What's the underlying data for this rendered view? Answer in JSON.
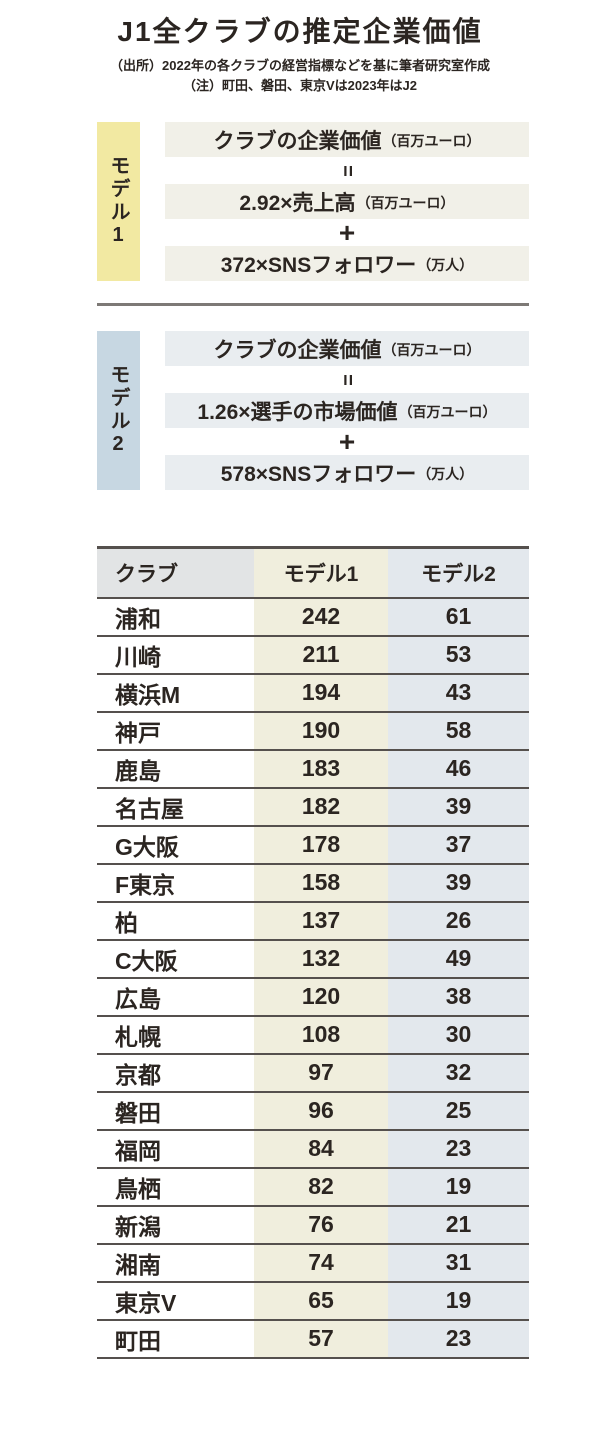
{
  "header": {
    "title": "J1全クラブの推定企業価値",
    "source_note": "（出所）2022年の各クラブの経営指標などを基に筆者研究室作成",
    "note": "（注）町田、磐田、東京Vは2023年はJ2"
  },
  "models": [
    {
      "label": "モデル1",
      "lines": [
        {
          "type": "box",
          "text": "クラブの企業価値",
          "unit": "（百万ユーロ）"
        },
        {
          "type": "op",
          "symbol": "="
        },
        {
          "type": "box",
          "text": "2.92×売上高",
          "unit": "（百万ユーロ）"
        },
        {
          "type": "op",
          "symbol": "+"
        },
        {
          "type": "box",
          "text": "372×SNSフォロワー",
          "unit": "（万人）"
        }
      ]
    },
    {
      "label": "モデル2",
      "lines": [
        {
          "type": "box",
          "text": "クラブの企業価値",
          "unit": "（百万ユーロ）"
        },
        {
          "type": "op",
          "symbol": "="
        },
        {
          "type": "box",
          "text": "1.26×選手の市場価値",
          "unit": "（百万ユーロ）"
        },
        {
          "type": "op",
          "symbol": "+"
        },
        {
          "type": "box",
          "text": "578×SNSフォロワー",
          "unit": "（万人）"
        }
      ]
    }
  ],
  "chart_data": {
    "type": "table",
    "title": "J1全クラブの推定企業価値",
    "columns": [
      "クラブ",
      "モデル1",
      "モデル2"
    ],
    "rows": [
      [
        "浦和",
        242,
        61
      ],
      [
        "川崎",
        211,
        53
      ],
      [
        "横浜M",
        194,
        43
      ],
      [
        "神戸",
        190,
        58
      ],
      [
        "鹿島",
        183,
        46
      ],
      [
        "名古屋",
        182,
        39
      ],
      [
        "G大阪",
        178,
        37
      ],
      [
        "F東京",
        158,
        39
      ],
      [
        "柏",
        137,
        26
      ],
      [
        "C大阪",
        132,
        49
      ],
      [
        "広島",
        120,
        38
      ],
      [
        "札幌",
        108,
        30
      ],
      [
        "京都",
        97,
        32
      ],
      [
        "磐田",
        96,
        25
      ],
      [
        "福岡",
        84,
        23
      ],
      [
        "鳥栖",
        82,
        19
      ],
      [
        "新潟",
        76,
        21
      ],
      [
        "湘南",
        74,
        31
      ],
      [
        "東京V",
        65,
        19
      ],
      [
        "町田",
        57,
        23
      ]
    ],
    "units": "百万ユーロ",
    "annotations": [
      "モデル1: クラブの企業価値(百万ユーロ) = 2.92×売上高(百万ユーロ) + 372×SNSフォロワー(万人)",
      "モデル2: クラブの企業価値(百万ユーロ) = 1.26×選手の市場価値(百万ユーロ) + 578×SNSフォロワー(万人)"
    ]
  },
  "colors": {
    "text": "#2b2521",
    "rule": "#55504d",
    "divider": "#7d7976",
    "model1_label_bg": "#f2e9a2",
    "model2_label_bg": "#c7d7e2",
    "model1_box_bg": "#f1f0e8",
    "model2_box_bg": "#e9edf0",
    "header_club_bg": "#e2e4e5",
    "col_model1_bg": "#f0eedd",
    "col_model2_bg": "#e3e8ed"
  }
}
